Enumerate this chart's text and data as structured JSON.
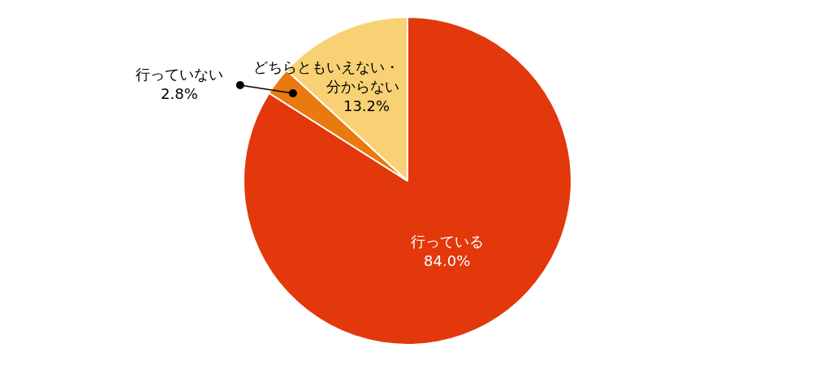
{
  "chart_data": {
    "type": "pie",
    "categories": [
      "行っている",
      "行っていない",
      "どちらともいえない・分からない"
    ],
    "values": [
      84.0,
      2.8,
      13.2
    ],
    "colors": [
      "#e2380c",
      "#ea7a0f",
      "#f8d175"
    ],
    "value_labels": [
      "84.0%",
      "2.8%",
      "13.2%"
    ],
    "legend": false
  }
}
